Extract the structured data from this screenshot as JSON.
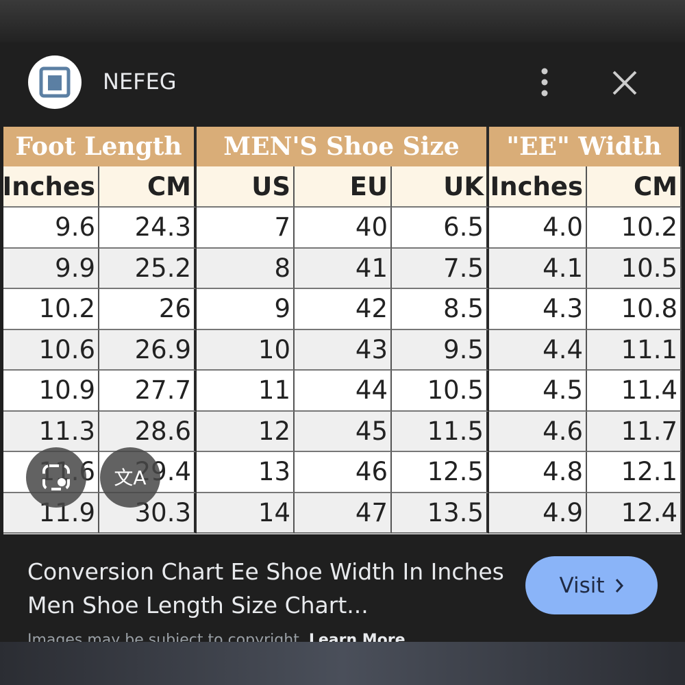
{
  "header": {
    "source": "NEFEG"
  },
  "table": {
    "groups": [
      "Foot Length",
      "MEN'S Shoe Size",
      "\"EE\" Width"
    ],
    "columns": [
      "Inches",
      "CM",
      "US",
      "EU",
      "UK",
      "Inches",
      "CM"
    ],
    "rows": [
      [
        "9.6",
        "24.3",
        "7",
        "40",
        "6.5",
        "4.0",
        "10.2"
      ],
      [
        "9.9",
        "25.2",
        "8",
        "41",
        "7.5",
        "4.1",
        "10.5"
      ],
      [
        "10.2",
        "26",
        "9",
        "42",
        "8.5",
        "4.3",
        "10.8"
      ],
      [
        "10.6",
        "26.9",
        "10",
        "43",
        "9.5",
        "4.4",
        "11.1"
      ],
      [
        "10.9",
        "27.7",
        "11",
        "44",
        "10.5",
        "4.5",
        "11.4"
      ],
      [
        "11.3",
        "28.6",
        "12",
        "45",
        "11.5",
        "4.6",
        "11.7"
      ],
      [
        "11.6",
        "29.4",
        "13",
        "46",
        "12.5",
        "4.8",
        "12.1"
      ],
      [
        "11.9",
        "30.3",
        "14",
        "47",
        "13.5",
        "4.9",
        "12.4"
      ]
    ]
  },
  "caption": {
    "title": "Conversion Chart Ee Shoe Width In Inches Men Shoe Length Size Chart...",
    "button": "Visit",
    "notice": "Images may be subject to copyright.",
    "link": "Learn More"
  }
}
